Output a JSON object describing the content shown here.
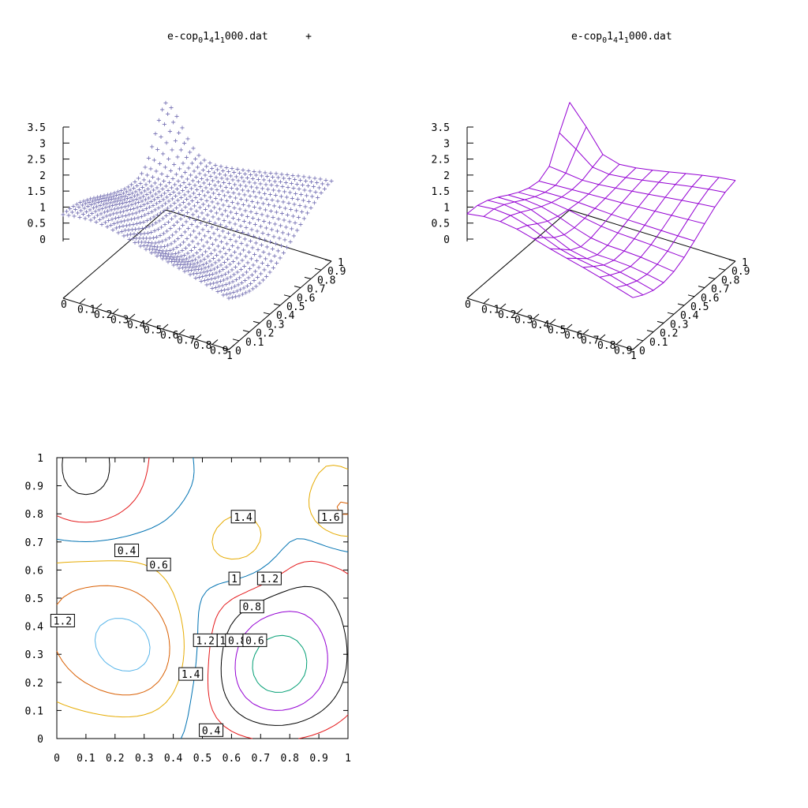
{
  "chart_data": [
    {
      "type": "scatter3d",
      "legend": {
        "name": "e-cop",
        "sub1": "0",
        "mid1": "1",
        "sub2": "4",
        "mid2": "1",
        "sub3": "1",
        "tail": "000.dat",
        "marker": "+"
      },
      "style": "points",
      "color": "#7570b3",
      "z_ticks": [
        "3.5",
        "3",
        "2.5",
        "2",
        "1.5",
        "1",
        "0.5",
        "0"
      ],
      "x_ticks": [
        "0",
        "0.1",
        "0.2",
        "0.3",
        "0.4",
        "0.5",
        "0.6",
        "0.7",
        "0.8",
        "0.9",
        "1"
      ],
      "y_ticks": [
        "0",
        "0.1",
        "0.2",
        "0.3",
        "0.4",
        "0.5",
        "0.6",
        "0.7",
        "0.8",
        "0.9",
        "1"
      ],
      "zlim": [
        0,
        3.5
      ]
    },
    {
      "type": "surface3d",
      "legend": {
        "name": "e-cop",
        "sub1": "0",
        "mid1": "1",
        "sub2": "4",
        "mid2": "1",
        "sub3": "1",
        "tail": "000.dat"
      },
      "style": "lines",
      "color": "#9400d3",
      "z_ticks": [
        "3.5",
        "3",
        "2.5",
        "2",
        "1.5",
        "1",
        "0.5",
        "0"
      ],
      "x_ticks": [
        "0",
        "0.1",
        "0.2",
        "0.3",
        "0.4",
        "0.5",
        "0.6",
        "0.7",
        "0.8",
        "0.9",
        "1"
      ],
      "y_ticks": [
        "0",
        "0.1",
        "0.2",
        "0.3",
        "0.4",
        "0.5",
        "0.6",
        "0.7",
        "0.8",
        "0.9",
        "1"
      ],
      "zlim": [
        0,
        3.5
      ]
    },
    {
      "type": "contour",
      "x_ticks": [
        "0",
        "0.1",
        "0.2",
        "0.3",
        "0.4",
        "0.5",
        "0.6",
        "0.7",
        "0.8",
        "0.9",
        "1"
      ],
      "y_ticks": [
        "0",
        "0.1",
        "0.2",
        "0.3",
        "0.4",
        "0.5",
        "0.6",
        "0.7",
        "0.8",
        "0.9",
        "1"
      ],
      "xlim": [
        0,
        1
      ],
      "ylim": [
        0,
        1
      ],
      "contour_labels": [
        {
          "text": "0.4",
          "x": 0.24,
          "y": 0.67
        },
        {
          "text": "0.6",
          "x": 0.35,
          "y": 0.62
        },
        {
          "text": "1.4",
          "x": 0.64,
          "y": 0.79
        },
        {
          "text": "1.6",
          "x": 0.94,
          "y": 0.79
        },
        {
          "text": "1",
          "x": 0.61,
          "y": 0.57
        },
        {
          "text": "1.2",
          "x": 0.73,
          "y": 0.57
        },
        {
          "text": "0.8",
          "x": 0.67,
          "y": 0.47
        },
        {
          "text": "1.2",
          "x": 0.02,
          "y": 0.42
        },
        {
          "text": "1.2",
          "x": 0.51,
          "y": 0.35
        },
        {
          "text": "1",
          "x": 0.57,
          "y": 0.35
        },
        {
          "text": "0.8",
          "x": 0.62,
          "y": 0.35
        },
        {
          "text": "0.6",
          "x": 0.68,
          "y": 0.35
        },
        {
          "text": "1.4",
          "x": 0.46,
          "y": 0.23
        },
        {
          "text": "0.4",
          "x": 0.53,
          "y": 0.03
        }
      ]
    }
  ]
}
